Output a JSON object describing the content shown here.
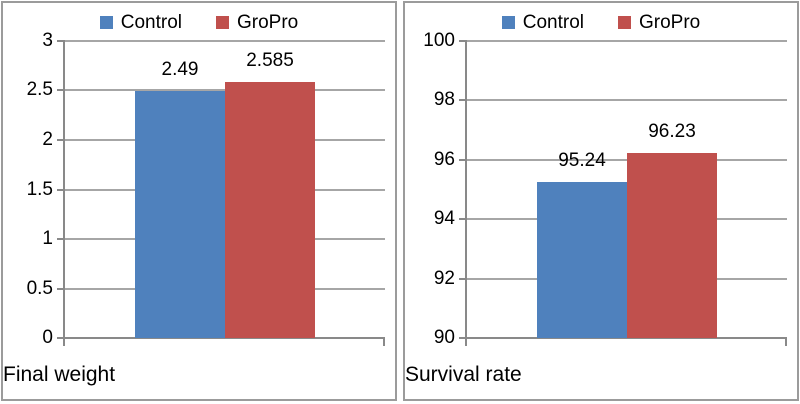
{
  "figure": {
    "background": "#ffffff",
    "panel_border_color": "#9b9b9b",
    "gridline_color": "#a6a6a6",
    "axis_color": "#898989",
    "text_color": "#000000"
  },
  "chart_data": [
    {
      "type": "bar",
      "title": "",
      "categories": [
        "Final weight"
      ],
      "series": [
        {
          "name": "Control",
          "color": "#4f81bd",
          "values": [
            2.49
          ]
        },
        {
          "name": "GroPro",
          "color": "#c0504d",
          "values": [
            2.585
          ]
        }
      ],
      "data_labels": [
        [
          "2.49"
        ],
        [
          "2.585"
        ]
      ],
      "xlabel": "",
      "ylabel": "",
      "ylim": [
        0,
        3
      ],
      "yticks": [
        0,
        0.5,
        1,
        1.5,
        2,
        2.5,
        3
      ],
      "grid": true,
      "legend_position": "top"
    },
    {
      "type": "bar",
      "title": "",
      "categories": [
        "Survival rate"
      ],
      "series": [
        {
          "name": "Control",
          "color": "#4f81bd",
          "values": [
            95.24
          ]
        },
        {
          "name": "GroPro",
          "color": "#c0504d",
          "values": [
            96.23
          ]
        }
      ],
      "data_labels": [
        [
          "95.24"
        ],
        [
          "96.23"
        ]
      ],
      "xlabel": "",
      "ylabel": "",
      "ylim": [
        90,
        100
      ],
      "yticks": [
        90,
        92,
        94,
        96,
        98,
        100
      ],
      "grid": true,
      "legend_position": "top"
    }
  ]
}
